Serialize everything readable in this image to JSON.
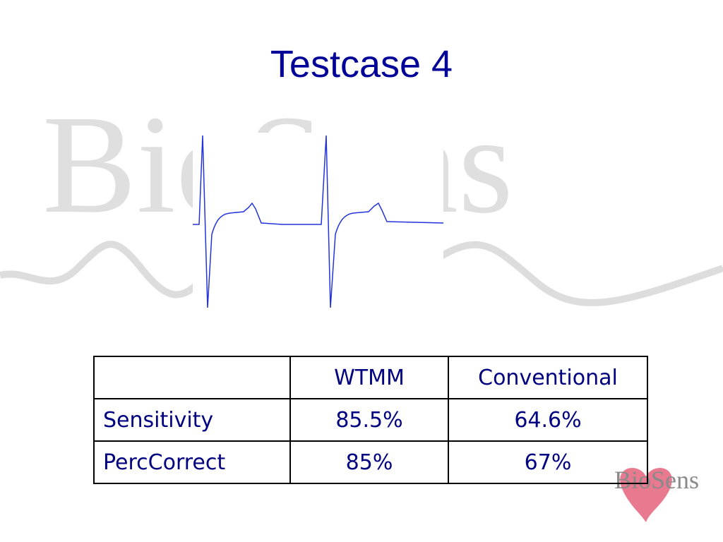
{
  "title": "Testcase 4",
  "watermark": "BioSens",
  "logo": "BioSens",
  "table": {
    "header": [
      "WTMM",
      "Conventional"
    ],
    "rows": [
      [
        "Sensitivity",
        "85.5%",
        "64.6%"
      ],
      [
        "PercCorrect",
        "85%",
        "67%"
      ]
    ]
  }
}
